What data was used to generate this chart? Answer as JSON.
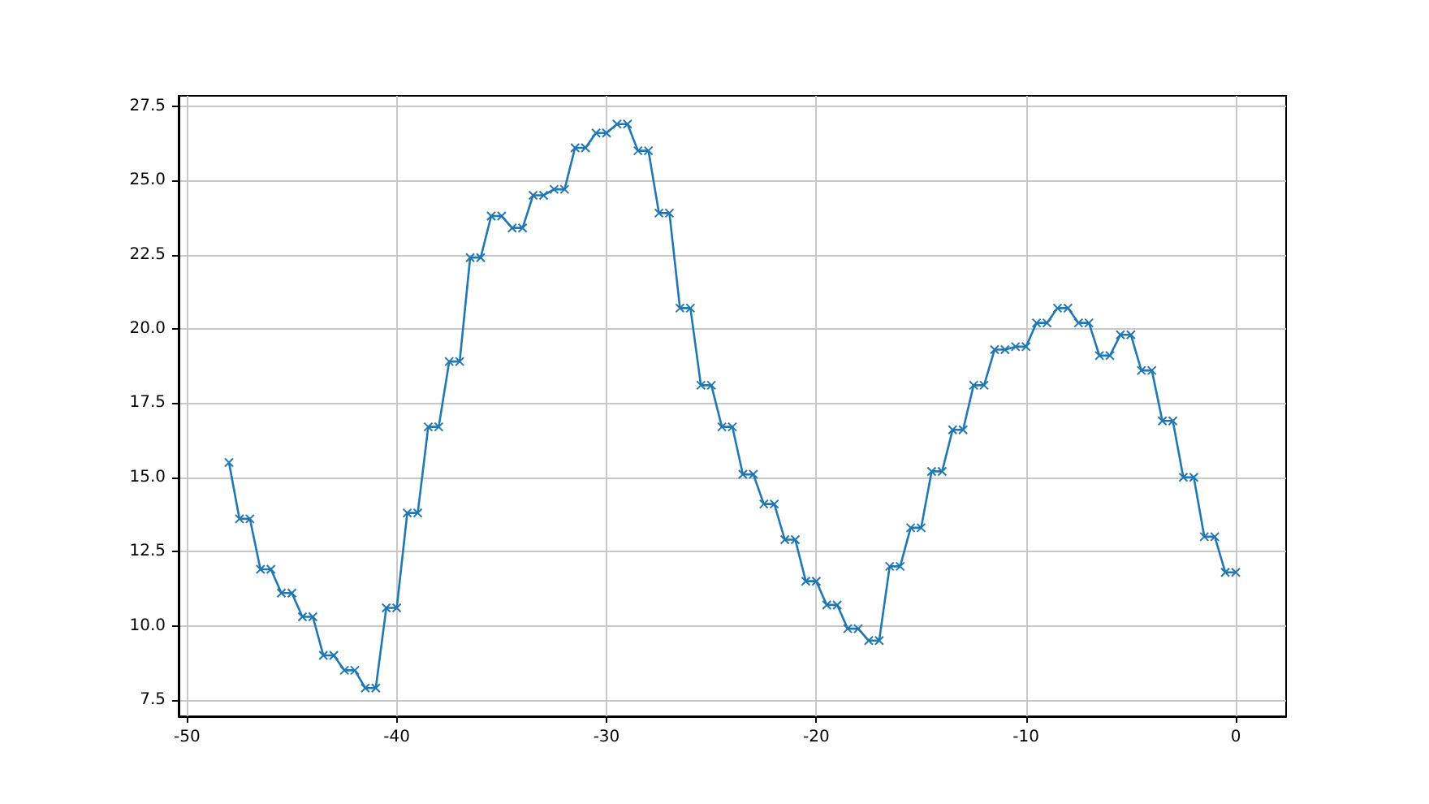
{
  "chart_data": {
    "type": "line",
    "marker": "cross",
    "grid": true,
    "x": [
      -48,
      -47.5,
      -47,
      -46.5,
      -46,
      -45.5,
      -45,
      -44.5,
      -44,
      -43.5,
      -43,
      -42.5,
      -42,
      -41.5,
      -41,
      -40.5,
      -40,
      -39.5,
      -39,
      -38.5,
      -38,
      -37.5,
      -37,
      -36.5,
      -36,
      -35.5,
      -35,
      -34.5,
      -34,
      -33.5,
      -33,
      -32.5,
      -32,
      -31.5,
      -31,
      -30.5,
      -30,
      -29.5,
      -29,
      -28.5,
      -28,
      -27.5,
      -27,
      -26.5,
      -26,
      -25.5,
      -25,
      -24.5,
      -24,
      -23.5,
      -23,
      -22.5,
      -22,
      -21.5,
      -21,
      -20.5,
      -20,
      -19.5,
      -19,
      -18.5,
      -18,
      -17.5,
      -17,
      -16.5,
      -16,
      -15.5,
      -15,
      -14.5,
      -14,
      -13.5,
      -13,
      -12.5,
      -12,
      -11.5,
      -11,
      -10.5,
      -10,
      -9.5,
      -9,
      -8.5,
      -8,
      -7.5,
      -7,
      -6.5,
      -6,
      -5.5,
      -5,
      -4.5,
      -4,
      -3.5,
      -3,
      -2.5,
      -2,
      -1.5,
      -1,
      -0.5,
      0
    ],
    "series": [
      {
        "color": "#1f77b4",
        "values": [
          15.5,
          13.6,
          13.6,
          11.9,
          11.9,
          11.1,
          11.1,
          10.3,
          10.3,
          9.0,
          9.0,
          8.5,
          8.5,
          7.9,
          7.9,
          10.6,
          10.6,
          13.8,
          13.8,
          16.7,
          16.7,
          18.9,
          18.9,
          22.4,
          22.4,
          23.8,
          23.8,
          23.4,
          23.4,
          24.5,
          24.5,
          24.7,
          24.7,
          26.1,
          26.1,
          26.6,
          26.6,
          26.9,
          26.9,
          26.0,
          26.0,
          23.9,
          23.9,
          20.7,
          20.7,
          18.1,
          18.1,
          16.7,
          16.7,
          15.1,
          15.1,
          14.1,
          14.1,
          12.9,
          12.9,
          11.5,
          11.5,
          10.7,
          10.7,
          9.9,
          9.9,
          9.5,
          9.5,
          12.0,
          12.0,
          13.3,
          13.3,
          15.2,
          15.2,
          16.6,
          16.6,
          18.1,
          18.1,
          19.3,
          19.3,
          19.4,
          19.4,
          20.2,
          20.2,
          20.7,
          20.7,
          20.2,
          20.2,
          19.1,
          19.1,
          19.8,
          19.8,
          18.6,
          18.6,
          16.9,
          16.9,
          15.0,
          15.0,
          13.0,
          13.0,
          11.8,
          11.8
        ]
      }
    ],
    "xlim": [
      -50.4,
      2.4
    ],
    "xticks": [
      -50,
      -40,
      -30,
      -20,
      -10,
      0
    ],
    "ylim": [
      6.95,
      27.85
    ],
    "yticks": [
      7.5,
      {
        "value": 10,
        "label": "10.0"
      },
      12.5,
      {
        "value": 15,
        "label": "15.0"
      },
      17.5,
      {
        "value": 20,
        "label": "20.0"
      },
      22.5,
      {
        "value": 25,
        "label": "25.0"
      },
      27.5
    ]
  }
}
